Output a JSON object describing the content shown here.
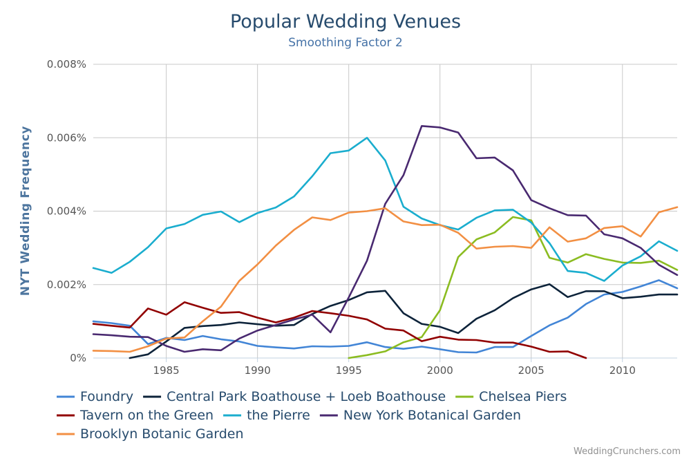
{
  "chart_data": {
    "type": "line",
    "title": "Popular Wedding Venues",
    "subtitle": "Smoothing Factor 2",
    "ylabel": "NYT Wedding Frequency",
    "xlabel": "",
    "x_range": [
      1981,
      2013
    ],
    "ylim": [
      0,
      0.008
    ],
    "x_ticks": [
      1985,
      1990,
      1995,
      2000,
      2005,
      2010
    ],
    "y_ticks": [
      {
        "value": 0,
        "label": "0%"
      },
      {
        "value": 0.002,
        "label": "0.002%"
      },
      {
        "value": 0.004,
        "label": "0.004%"
      },
      {
        "value": 0.006,
        "label": "0.006%"
      },
      {
        "value": 0.008,
        "label": "0.008%"
      }
    ],
    "grid": "vertical and horizontal",
    "legend_position": "bottom",
    "series": [
      {
        "name": "Foundry",
        "color": "#4285d6",
        "points": [
          [
            1981,
            0.001
          ],
          [
            1982,
            0.00095
          ],
          [
            1983,
            0.00088
          ],
          [
            1984,
            0.00038
          ],
          [
            1985,
            0.00055
          ],
          [
            1986,
            0.00049
          ],
          [
            1987,
            0.0006
          ],
          [
            1988,
            0.00051
          ],
          [
            1989,
            0.00045
          ],
          [
            1990,
            0.00033
          ],
          [
            1991,
            0.00029
          ],
          [
            1992,
            0.00026
          ],
          [
            1993,
            0.00032
          ],
          [
            1994,
            0.00031
          ],
          [
            1995,
            0.00033
          ],
          [
            1996,
            0.00043
          ],
          [
            1997,
            0.0003
          ],
          [
            1998,
            0.00025
          ],
          [
            1999,
            0.00031
          ],
          [
            2000,
            0.00024
          ],
          [
            2001,
            0.00016
          ],
          [
            2002,
            0.00015
          ],
          [
            2003,
            0.0003
          ],
          [
            2004,
            0.0003
          ],
          [
            2005,
            0.0006
          ],
          [
            2006,
            0.00089
          ],
          [
            2007,
            0.0011
          ],
          [
            2008,
            0.00147
          ],
          [
            2009,
            0.00173
          ],
          [
            2010,
            0.0018
          ],
          [
            2011,
            0.00195
          ],
          [
            2012,
            0.00212
          ],
          [
            2013,
            0.0019
          ]
        ]
      },
      {
        "name": "Central Park Boathouse + Loeb Boathouse",
        "color": "#0d233a",
        "points": [
          [
            1983,
            0.0
          ],
          [
            1984,
            0.0001
          ],
          [
            1985,
            0.00045
          ],
          [
            1986,
            0.00082
          ],
          [
            1987,
            0.00087
          ],
          [
            1988,
            0.0009
          ],
          [
            1989,
            0.00097
          ],
          [
            1990,
            0.00092
          ],
          [
            1991,
            0.00088
          ],
          [
            1992,
            0.0009
          ],
          [
            1993,
            0.0012
          ],
          [
            1994,
            0.00142
          ],
          [
            1995,
            0.00158
          ],
          [
            1996,
            0.00179
          ],
          [
            1997,
            0.00183
          ],
          [
            1998,
            0.00122
          ],
          [
            1999,
            0.00093
          ],
          [
            2000,
            0.00085
          ],
          [
            2001,
            0.00068
          ],
          [
            2002,
            0.00107
          ],
          [
            2003,
            0.0013
          ],
          [
            2004,
            0.00163
          ],
          [
            2005,
            0.00187
          ],
          [
            2006,
            0.00201
          ],
          [
            2007,
            0.00166
          ],
          [
            2008,
            0.00182
          ],
          [
            2009,
            0.00182
          ],
          [
            2010,
            0.00163
          ],
          [
            2011,
            0.00167
          ],
          [
            2012,
            0.00173
          ],
          [
            2013,
            0.00173
          ]
        ]
      },
      {
        "name": "Chelsea Piers",
        "color": "#8bbc21",
        "points": [
          [
            1995,
            0.0
          ],
          [
            1996,
            8e-05
          ],
          [
            1997,
            0.00018
          ],
          [
            1998,
            0.00043
          ],
          [
            1999,
            0.00057
          ],
          [
            2000,
            0.0013
          ],
          [
            2001,
            0.00275
          ],
          [
            2002,
            0.00323
          ],
          [
            2003,
            0.00342
          ],
          [
            2004,
            0.00384
          ],
          [
            2005,
            0.00375
          ],
          [
            2006,
            0.00273
          ],
          [
            2007,
            0.0026
          ],
          [
            2008,
            0.00283
          ],
          [
            2009,
            0.0027
          ],
          [
            2010,
            0.0026
          ],
          [
            2011,
            0.00259
          ],
          [
            2012,
            0.00265
          ],
          [
            2013,
            0.0024
          ]
        ]
      },
      {
        "name": "Tavern on the Green",
        "color": "#910000",
        "points": [
          [
            1981,
            0.00093
          ],
          [
            1982,
            0.00088
          ],
          [
            1983,
            0.00083
          ],
          [
            1984,
            0.00135
          ],
          [
            1985,
            0.00118
          ],
          [
            1986,
            0.00152
          ],
          [
            1987,
            0.00137
          ],
          [
            1988,
            0.00123
          ],
          [
            1989,
            0.00125
          ],
          [
            1990,
            0.0011
          ],
          [
            1991,
            0.00097
          ],
          [
            1992,
            0.0011
          ],
          [
            1993,
            0.00128
          ],
          [
            1994,
            0.00122
          ],
          [
            1995,
            0.00115
          ],
          [
            1996,
            0.00105
          ],
          [
            1997,
            0.0008
          ],
          [
            1998,
            0.00075
          ],
          [
            1999,
            0.00046
          ],
          [
            2000,
            0.00058
          ],
          [
            2001,
            0.0005
          ],
          [
            2002,
            0.00049
          ],
          [
            2003,
            0.00042
          ],
          [
            2004,
            0.00042
          ],
          [
            2005,
            0.00031
          ],
          [
            2006,
            0.00017
          ],
          [
            2007,
            0.00018
          ],
          [
            2008,
            0.0
          ]
        ]
      },
      {
        "name": "the Pierre",
        "color": "#1aadce",
        "points": [
          [
            1981,
            0.00245
          ],
          [
            1982,
            0.00232
          ],
          [
            1983,
            0.00262
          ],
          [
            1984,
            0.00302
          ],
          [
            1985,
            0.00353
          ],
          [
            1986,
            0.00365
          ],
          [
            1987,
            0.0039
          ],
          [
            1988,
            0.00399
          ],
          [
            1989,
            0.0037
          ],
          [
            1990,
            0.00395
          ],
          [
            1991,
            0.0041
          ],
          [
            1992,
            0.0044
          ],
          [
            1993,
            0.00495
          ],
          [
            1994,
            0.00558
          ],
          [
            1995,
            0.00565
          ],
          [
            1996,
            0.006
          ],
          [
            1997,
            0.00538
          ],
          [
            1998,
            0.00412
          ],
          [
            1999,
            0.0038
          ],
          [
            2000,
            0.00362
          ],
          [
            2001,
            0.0035
          ],
          [
            2002,
            0.00382
          ],
          [
            2003,
            0.00402
          ],
          [
            2004,
            0.00404
          ],
          [
            2005,
            0.00369
          ],
          [
            2006,
            0.00313
          ],
          [
            2007,
            0.00237
          ],
          [
            2008,
            0.00232
          ],
          [
            2009,
            0.0021
          ],
          [
            2010,
            0.00252
          ],
          [
            2011,
            0.00277
          ],
          [
            2012,
            0.00318
          ],
          [
            2013,
            0.00292
          ]
        ]
      },
      {
        "name": "New York Botanical Garden",
        "color": "#492970",
        "points": [
          [
            1981,
            0.00065
          ],
          [
            1982,
            0.00062
          ],
          [
            1983,
            0.00058
          ],
          [
            1984,
            0.00057
          ],
          [
            1985,
            0.00033
          ],
          [
            1986,
            0.00017
          ],
          [
            1987,
            0.00024
          ],
          [
            1988,
            0.00021
          ],
          [
            1989,
            0.00053
          ],
          [
            1990,
            0.00075
          ],
          [
            1991,
            0.0009
          ],
          [
            1992,
            0.00105
          ],
          [
            1993,
            0.00118
          ],
          [
            1994,
            0.0007
          ],
          [
            1995,
            0.00165
          ],
          [
            1996,
            0.00265
          ],
          [
            1997,
            0.0042
          ],
          [
            1998,
            0.00498
          ],
          [
            1999,
            0.00632
          ],
          [
            2000,
            0.00628
          ],
          [
            2001,
            0.00614
          ],
          [
            2002,
            0.00544
          ],
          [
            2003,
            0.00546
          ],
          [
            2004,
            0.00511
          ],
          [
            2005,
            0.0043
          ],
          [
            2006,
            0.00408
          ],
          [
            2007,
            0.00389
          ],
          [
            2008,
            0.00388
          ],
          [
            2009,
            0.00337
          ],
          [
            2010,
            0.00326
          ],
          [
            2011,
            0.003
          ],
          [
            2012,
            0.00254
          ],
          [
            2013,
            0.00226
          ]
        ]
      },
      {
        "name": "Brooklyn Botanic Garden",
        "color": "#f28f43",
        "points": [
          [
            1981,
            0.0002
          ],
          [
            1982,
            0.00019
          ],
          [
            1983,
            0.00017
          ],
          [
            1984,
            0.00032
          ],
          [
            1985,
            0.00053
          ],
          [
            1986,
            0.00056
          ],
          [
            1987,
            0.001
          ],
          [
            1988,
            0.0014
          ],
          [
            1989,
            0.0021
          ],
          [
            1990,
            0.00255
          ],
          [
            1991,
            0.00306
          ],
          [
            1992,
            0.00349
          ],
          [
            1993,
            0.00383
          ],
          [
            1994,
            0.00376
          ],
          [
            1995,
            0.00396
          ],
          [
            1996,
            0.004
          ],
          [
            1997,
            0.00408
          ],
          [
            1998,
            0.00372
          ],
          [
            1999,
            0.00362
          ],
          [
            2000,
            0.00363
          ],
          [
            2001,
            0.00341
          ],
          [
            2002,
            0.00298
          ],
          [
            2003,
            0.00303
          ],
          [
            2004,
            0.00305
          ],
          [
            2005,
            0.003
          ],
          [
            2006,
            0.00356
          ],
          [
            2007,
            0.00317
          ],
          [
            2008,
            0.00326
          ],
          [
            2009,
            0.00354
          ],
          [
            2010,
            0.00359
          ],
          [
            2011,
            0.00331
          ],
          [
            2012,
            0.00397
          ],
          [
            2013,
            0.00411
          ]
        ]
      }
    ]
  },
  "credit": "WeddingCrunchers.com"
}
